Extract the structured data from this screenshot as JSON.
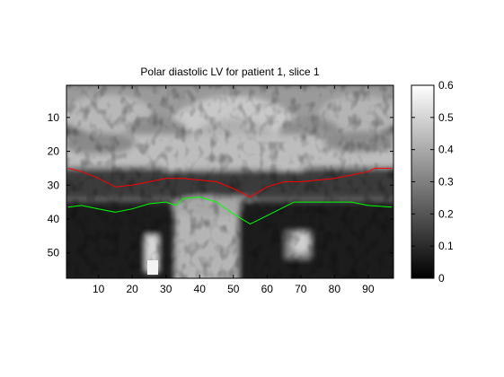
{
  "chart_data": {
    "type": "heatmap",
    "title": "Polar diastolic LV for patient 1, slice 1",
    "xlabel": "",
    "ylabel": "",
    "xlim": [
      0.5,
      97.5
    ],
    "ylim": [
      0.5,
      57.5
    ],
    "y_reversed": true,
    "x_ticks": [
      10,
      20,
      30,
      40,
      50,
      60,
      70,
      80,
      90
    ],
    "y_ticks": [
      10,
      20,
      30,
      40,
      50
    ],
    "x_tick_labels": [
      "10",
      "20",
      "30",
      "40",
      "50",
      "60",
      "70",
      "80",
      "90"
    ],
    "y_tick_labels": [
      "10",
      "20",
      "30",
      "40",
      "50"
    ],
    "grid": false,
    "colormap": "gray",
    "colorbar": {
      "range": [
        0,
        0.6
      ],
      "ticks": [
        0,
        0.1,
        0.2,
        0.3,
        0.4,
        0.5,
        0.6
      ],
      "tick_labels": [
        "0",
        "0.1",
        "0.2",
        "0.3",
        "0.4",
        "0.5",
        "0.6"
      ]
    },
    "series": [
      {
        "color": "#ff0000",
        "x": [
          1,
          5,
          10,
          15,
          20,
          25,
          30,
          35,
          40,
          45,
          50,
          55,
          60,
          65,
          70,
          75,
          80,
          85,
          90,
          92,
          97
        ],
        "y": [
          25,
          26,
          28,
          30.5,
          30,
          29,
          28,
          28,
          28.5,
          29,
          31,
          33.5,
          30.5,
          29,
          29,
          28.5,
          28,
          27,
          26,
          25,
          25
        ]
      },
      {
        "color": "#00ff00",
        "x": [
          1,
          5,
          10,
          15,
          20,
          25,
          30,
          33,
          35,
          40,
          45,
          50,
          55,
          60,
          65,
          68,
          75,
          80,
          85,
          90,
          97
        ],
        "y": [
          36.5,
          36,
          37,
          38,
          37,
          35.5,
          35,
          36,
          34,
          33.5,
          35,
          38.5,
          41.5,
          39,
          36.5,
          35,
          35,
          35,
          35,
          36,
          36.5
        ]
      }
    ]
  }
}
